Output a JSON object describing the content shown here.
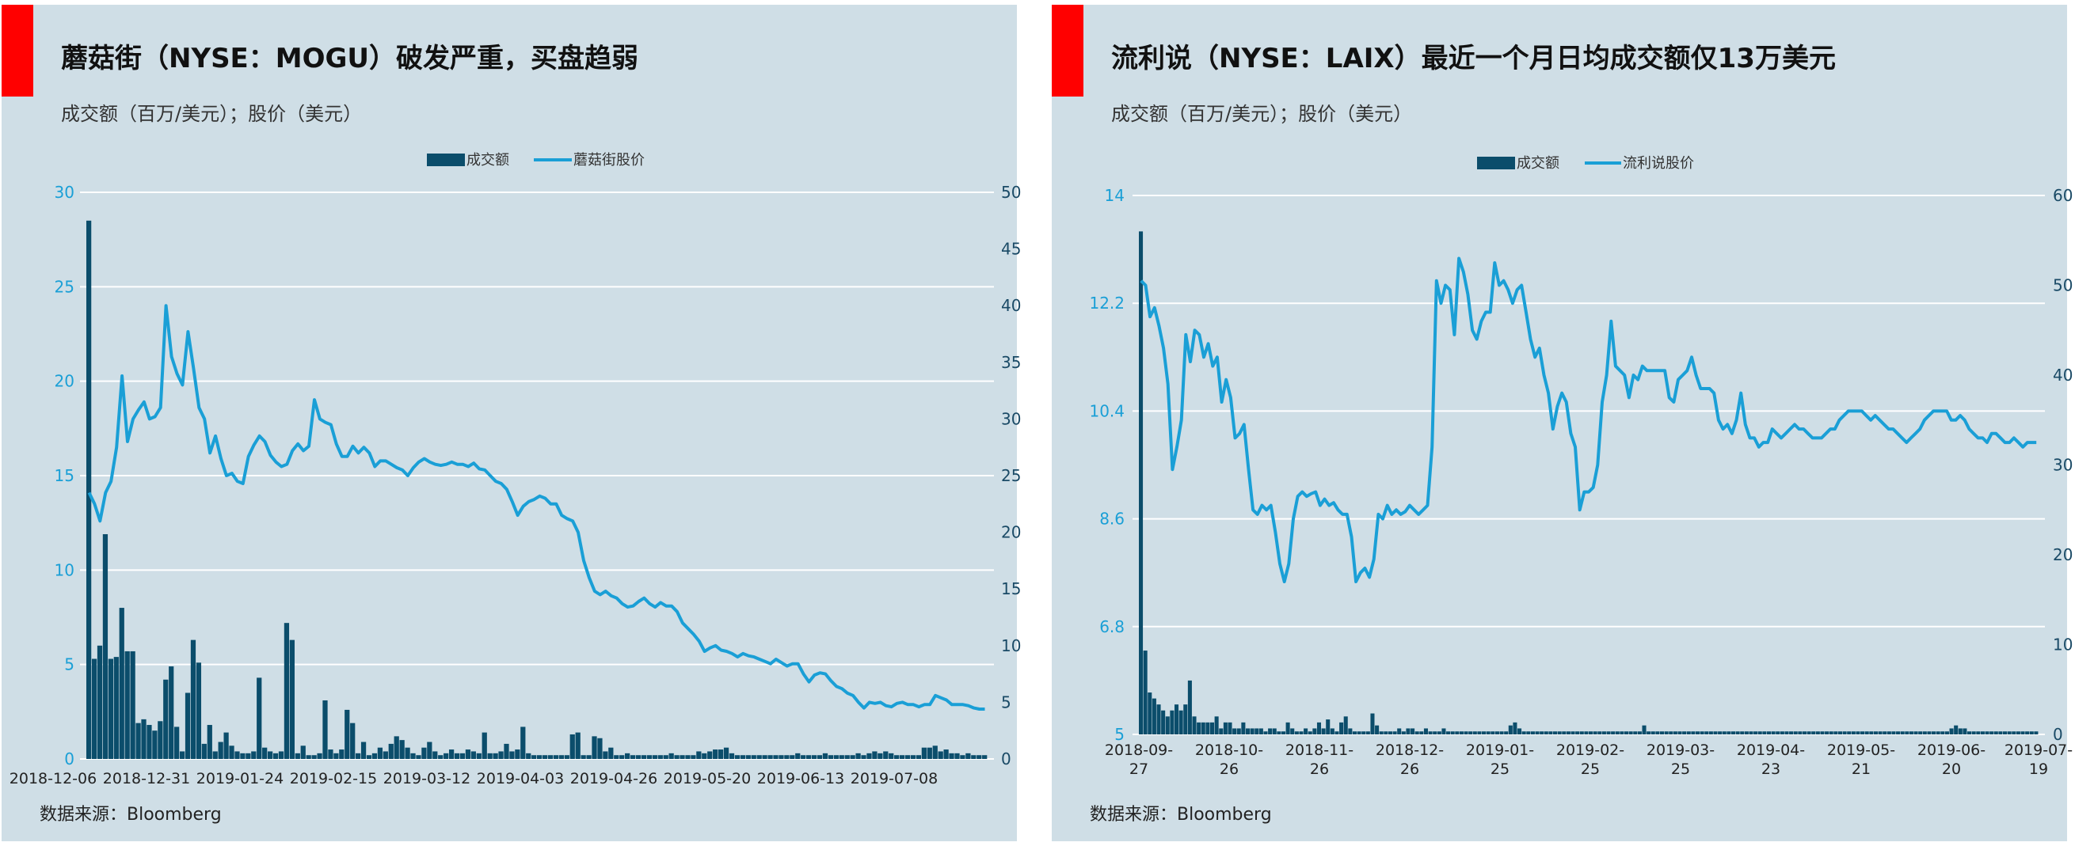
{
  "colors": {
    "flag": "#ff0000",
    "bar": "#0b4d6b",
    "line": "#1a9fd6",
    "grid": "#ffffff",
    "panel": "#cfdee6"
  },
  "charts": [
    {
      "title": "蘑菇街（NYSE：MOGU）破发严重，买盘趋弱",
      "units": "成交额（百万/美元）；股价（美元）",
      "source": "数据来源：Bloomberg",
      "legend": {
        "bar": "成交额",
        "line": "蘑菇街股价"
      }
    },
    {
      "title": "流利说（NYSE：LAIX）最近一个月日均成交额仅13万美元",
      "units": "成交额（百万/美元）；股价（美元）",
      "source": "数据来源：Bloomberg",
      "legend": {
        "bar": "成交额",
        "line": "流利说股价"
      }
    }
  ],
  "chart_data": [
    {
      "type": "bar+line",
      "title": "蘑菇街（NYSE：MOGU）破发严重，买盘趋弱",
      "ylabel": "成交额（百万/美元）；股价（美元）",
      "x_tick_labels": [
        "2018-12-06",
        "2018-12-31",
        "2019-01-24",
        "2019-02-15",
        "2019-03-12",
        "2019-04-03",
        "2019-04-26",
        "2019-05-20",
        "2019-06-13",
        "2019-07-08"
      ],
      "left_axis": {
        "ticks": [
          "0",
          "5",
          "10",
          "15",
          "20",
          "25",
          "30"
        ],
        "min": 0,
        "max": 30
      },
      "right_axis": {
        "ticks": [
          "0",
          "5",
          "10",
          "15",
          "20",
          "25",
          "30",
          "35",
          "40",
          "45",
          "50"
        ],
        "min": 0,
        "max": 50
      },
      "n_points": 160,
      "series": [
        {
          "name": "成交额",
          "axis": "left",
          "kind": "bar",
          "values": [
            28.5,
            5.3,
            6.0,
            11.9,
            5.3,
            5.4,
            8.0,
            5.7,
            5.7,
            1.9,
            2.1,
            1.8,
            1.5,
            2.0,
            4.2,
            4.9,
            1.7,
            0.4,
            3.5,
            6.3,
            5.1,
            0.8,
            1.8,
            0.4,
            0.9,
            1.4,
            0.7,
            0.4,
            0.3,
            0.3,
            0.4,
            4.3,
            0.6,
            0.4,
            0.3,
            0.4,
            7.2,
            6.3,
            0.3,
            0.7,
            0.2,
            0.2,
            0.3,
            3.1,
            0.5,
            0.3,
            0.5,
            2.6,
            1.9,
            0.3,
            0.9,
            0.2,
            0.3,
            0.6,
            0.4,
            0.8,
            1.2,
            1.0,
            0.6,
            0.3,
            0.2,
            0.6,
            0.9,
            0.4,
            0.2,
            0.3,
            0.5,
            0.3,
            0.3,
            0.5,
            0.4,
            0.3,
            1.4,
            0.3,
            0.3,
            0.4,
            0.8,
            0.4,
            0.5,
            1.7,
            0.3,
            0.2,
            0.2,
            0.2,
            0.2,
            0.2,
            0.2,
            0.2,
            1.3,
            1.4,
            0.2,
            0.2,
            1.2,
            1.1,
            0.4,
            0.6,
            0.2,
            0.2,
            0.3,
            0.2,
            0.2,
            0.2,
            0.2,
            0.2,
            0.2,
            0.2,
            0.3,
            0.2,
            0.2,
            0.2,
            0.2,
            0.4,
            0.3,
            0.4,
            0.5,
            0.5,
            0.6,
            0.3,
            0.2,
            0.2,
            0.2,
            0.2,
            0.2,
            0.2,
            0.2,
            0.2,
            0.2,
            0.2,
            0.2,
            0.3,
            0.2,
            0.2,
            0.2,
            0.2,
            0.3,
            0.2,
            0.2,
            0.2,
            0.2,
            0.2,
            0.3,
            0.2,
            0.3,
            0.4,
            0.3,
            0.4,
            0.3,
            0.2,
            0.2,
            0.2,
            0.2,
            0.2,
            0.6,
            0.6,
            0.7,
            0.4,
            0.5,
            0.3,
            0.3,
            0.2,
            0.3,
            0.2,
            0.2,
            0.2
          ]
        },
        {
          "name": "股价",
          "axis": "right",
          "kind": "line",
          "values": [
            23.5,
            22.5,
            21.0,
            23.5,
            24.5,
            27.5,
            33.8,
            28.0,
            30.0,
            30.8,
            31.5,
            30.0,
            30.2,
            31.0,
            40.0,
            35.5,
            34.0,
            33.0,
            37.7,
            34.5,
            31.0,
            30.0,
            27.0,
            28.5,
            26.5,
            25.0,
            25.2,
            24.5,
            24.3,
            26.7,
            27.7,
            28.5,
            28.0,
            26.8,
            26.2,
            25.8,
            26.0,
            27.2,
            27.8,
            27.2,
            27.6,
            31.7,
            30.0,
            29.7,
            29.5,
            27.8,
            26.7,
            26.7,
            27.6,
            27.0,
            27.5,
            27.0,
            25.8,
            26.3,
            26.3,
            26.0,
            25.7,
            25.5,
            25.0,
            25.7,
            26.2,
            26.5,
            26.2,
            26.0,
            25.9,
            26.0,
            26.2,
            26.0,
            26.0,
            25.8,
            26.1,
            25.6,
            25.5,
            25.0,
            24.5,
            24.3,
            23.8,
            22.7,
            21.5,
            22.3,
            22.7,
            22.9,
            23.2,
            23.0,
            22.5,
            22.5,
            21.5,
            21.2,
            21.0,
            20.0,
            17.5,
            16.0,
            14.8,
            14.5,
            14.8,
            14.4,
            14.2,
            13.7,
            13.4,
            13.5,
            13.9,
            14.2,
            13.7,
            13.4,
            13.8,
            13.5,
            13.5,
            13.0,
            12.0,
            11.5,
            11.0,
            10.4,
            9.5,
            9.8,
            10.0,
            9.6,
            9.5,
            9.3,
            9.0,
            9.3,
            9.1,
            9.0,
            8.8,
            8.6,
            8.4,
            8.8,
            8.5,
            8.2,
            8.4,
            8.4,
            7.5,
            6.8,
            7.4,
            7.6,
            7.5,
            6.9,
            6.4,
            6.2,
            5.8,
            5.6,
            5.0,
            4.5,
            5.0,
            4.9,
            5.0,
            4.7,
            4.6,
            4.9,
            5.0,
            4.8,
            4.8,
            4.6,
            4.8,
            4.8,
            5.6,
            5.4,
            5.2,
            4.8,
            4.8,
            4.8,
            4.7,
            4.5,
            4.4,
            4.4
          ]
        }
      ]
    },
    {
      "type": "bar+line",
      "title": "流利说（NYSE：LAIX）最近一个月日均成交额仅13万美元",
      "ylabel": "成交额（百万/美元）；股价（美元）",
      "x_tick_labels": [
        [
          "2018-09-",
          "27"
        ],
        [
          "2018-10-",
          "26"
        ],
        [
          "2018-11-",
          "26"
        ],
        [
          "2018-12-",
          "26"
        ],
        [
          "2019-01-",
          "25"
        ],
        [
          "2019-02-",
          "25"
        ],
        [
          "2019-03-",
          "25"
        ],
        [
          "2019-04-",
          "23"
        ],
        [
          "2019-05-",
          "21"
        ],
        [
          "2019-06-",
          "20"
        ],
        [
          "2019-07-",
          "19"
        ]
      ],
      "left_axis": {
        "ticks": [
          "5",
          "6.8",
          "8.6",
          "10.4",
          "12.2",
          "14"
        ],
        "min": 5,
        "max": 14
      },
      "right_axis": {
        "ticks": [
          "0",
          "10",
          "20",
          "30",
          "40",
          "50",
          "60"
        ],
        "min": 0,
        "max": 60
      },
      "n_points": 200,
      "series": [
        {
          "name": "成交额",
          "axis": "left",
          "kind": "bar",
          "values": [
            13.4,
            6.4,
            5.7,
            5.6,
            5.5,
            5.4,
            5.3,
            5.4,
            5.5,
            5.4,
            5.5,
            5.9,
            5.3,
            5.2,
            5.2,
            5.2,
            5.2,
            5.3,
            5.1,
            5.2,
            5.2,
            5.1,
            5.1,
            5.2,
            5.1,
            5.1,
            5.1,
            5.1,
            5.05,
            5.1,
            5.1,
            5.05,
            5.05,
            5.2,
            5.1,
            5.05,
            5.05,
            5.1,
            5.05,
            5.1,
            5.2,
            5.1,
            5.25,
            5.1,
            5.05,
            5.2,
            5.3,
            5.1,
            5.05,
            5.05,
            5.05,
            5.05,
            5.35,
            5.15,
            5.05,
            5.05,
            5.05,
            5.05,
            5.1,
            5.05,
            5.1,
            5.1,
            5.05,
            5.05,
            5.1,
            5.05,
            5.05,
            5.05,
            5.1,
            5.05,
            5.05,
            5.05,
            5.05,
            5.05,
            5.05,
            5.05,
            5.05,
            5.05,
            5.05,
            5.05,
            5.05,
            5.05,
            5.05,
            5.15,
            5.2,
            5.1,
            5.05,
            5.05,
            5.05,
            5.05,
            5.05,
            5.05,
            5.05,
            5.05,
            5.05,
            5.05,
            5.05,
            5.05,
            5.05,
            5.05,
            5.05,
            5.05,
            5.05,
            5.05,
            5.05,
            5.05,
            5.05,
            5.05,
            5.05,
            5.05,
            5.05,
            5.05,
            5.05,
            5.15,
            5.05,
            5.05,
            5.05,
            5.05,
            5.05,
            5.05,
            5.05,
            5.05,
            5.05,
            5.05,
            5.05,
            5.05,
            5.05,
            5.05,
            5.05,
            5.05,
            5.05,
            5.05,
            5.05,
            5.05,
            5.05,
            5.05,
            5.05,
            5.05,
            5.05,
            5.05,
            5.05,
            5.05,
            5.05,
            5.05,
            5.05,
            5.05,
            5.05,
            5.05,
            5.05,
            5.05,
            5.05,
            5.05,
            5.05,
            5.05,
            5.05,
            5.05,
            5.05,
            5.05,
            5.05,
            5.05,
            5.05,
            5.05,
            5.05,
            5.05,
            5.05,
            5.05,
            5.05,
            5.05,
            5.05,
            5.05,
            5.05,
            5.05,
            5.05,
            5.05,
            5.05,
            5.05,
            5.05,
            5.05,
            5.05,
            5.05,
            5.05,
            5.05,
            5.1,
            5.15,
            5.1,
            5.1,
            5.05,
            5.05,
            5.05,
            5.05,
            5.05,
            5.05,
            5.05,
            5.05,
            5.05,
            5.05,
            5.05,
            5.05,
            5.05,
            5.05,
            5.05,
            5.05
          ]
        },
        {
          "name": "股价",
          "axis": "right",
          "kind": "line",
          "values": [
            50.5,
            50.0,
            46.5,
            47.5,
            45.5,
            43.0,
            39.0,
            29.5,
            32.0,
            35.0,
            44.5,
            41.5,
            45.0,
            44.5,
            42.0,
            43.5,
            41.0,
            42.0,
            37.0,
            39.5,
            37.5,
            33.0,
            33.5,
            34.5,
            29.5,
            25.0,
            24.5,
            25.5,
            25.0,
            25.5,
            22.5,
            19.0,
            17.0,
            19.0,
            24.0,
            26.5,
            27.0,
            26.5,
            26.8,
            27.0,
            25.5,
            26.2,
            25.5,
            25.8,
            25.0,
            24.5,
            24.5,
            22.0,
            17.0,
            18.0,
            18.5,
            17.5,
            19.5,
            24.5,
            24.0,
            25.5,
            24.5,
            25.0,
            24.5,
            24.8,
            25.5,
            25.0,
            24.5,
            25.0,
            25.5,
            32.0,
            50.5,
            48.0,
            50.0,
            49.5,
            44.5,
            53.0,
            51.5,
            49.0,
            45.0,
            44.0,
            46.0,
            47.0,
            47.0,
            52.5,
            50.0,
            50.5,
            49.5,
            48.0,
            49.5,
            50.0,
            47.0,
            44.0,
            42.0,
            43.0,
            40.0,
            38.0,
            34.0,
            36.5,
            38.0,
            37.0,
            33.5,
            32.0,
            25.0,
            27.0,
            27.0,
            27.5,
            30.0,
            37.0,
            40.0,
            46.0,
            41.0,
            40.5,
            40.0,
            37.5,
            40.0,
            39.5,
            41.0,
            40.5,
            40.5,
            40.5,
            40.5,
            40.5,
            37.5,
            37.0,
            39.5,
            40.0,
            40.5,
            42.0,
            40.0,
            38.5,
            38.5,
            38.5,
            38.0,
            35.0,
            34.0,
            34.5,
            33.5,
            35.0,
            38.0,
            34.5,
            33.0,
            33.0,
            32.0,
            32.5,
            32.5,
            34.0,
            33.5,
            33.0,
            33.5,
            34.0,
            34.5,
            34.0,
            34.0,
            33.5,
            33.0,
            33.0,
            33.0,
            33.5,
            34.0,
            34.0,
            35.0,
            35.5,
            36.0,
            36.0,
            36.0,
            36.0,
            35.5,
            35.0,
            35.5,
            35.0,
            34.5,
            34.0,
            34.0,
            33.5,
            33.0,
            32.5,
            33.0,
            33.5,
            34.0,
            35.0,
            35.5,
            36.0,
            36.0,
            36.0,
            36.0,
            35.0,
            35.0,
            35.5,
            35.0,
            34.0,
            33.5,
            33.0,
            33.0,
            32.5,
            33.5,
            33.5,
            33.0,
            32.5,
            32.5,
            33.0,
            32.5,
            32.0,
            32.5,
            32.5,
            32.5
          ]
        }
      ]
    }
  ]
}
